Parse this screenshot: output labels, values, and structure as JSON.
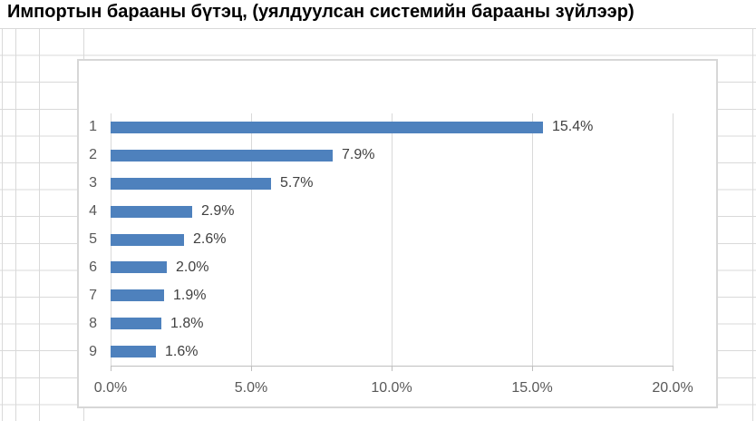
{
  "sheet": {
    "title": "Импортын барааны бүтэц, (уялдуулсан системийн барааны зүйлээр)"
  },
  "chart_data": {
    "type": "bar",
    "orientation": "horizontal",
    "title": "Импортын барааны бүтэц, (уялдуулсан системийн барааны зүйлээр)",
    "categories": [
      "1",
      "2",
      "3",
      "4",
      "5",
      "6",
      "7",
      "8",
      "9"
    ],
    "values": [
      15.4,
      7.9,
      5.7,
      2.9,
      2.6,
      2.0,
      1.9,
      1.8,
      1.6
    ],
    "data_labels": [
      "15.4%",
      "7.9%",
      "5.7%",
      "2.9%",
      "2.6%",
      "2.0%",
      "1.9%",
      "1.8%",
      "1.6%"
    ],
    "x_ticks": [
      "0.0%",
      "5.0%",
      "10.0%",
      "15.0%",
      "20.0%"
    ],
    "x_tick_values": [
      0,
      5,
      10,
      15,
      20
    ],
    "xlim": [
      0,
      20
    ],
    "xlabel": "",
    "ylabel": "",
    "legend": "none",
    "grid": "vertical-major",
    "bar_color": "#4E81BD",
    "gridline_color": "#D9D9D9",
    "axis_line_color": "#BFBFBF",
    "axis_text_color": "#595959",
    "data_label_color": "#404040"
  }
}
